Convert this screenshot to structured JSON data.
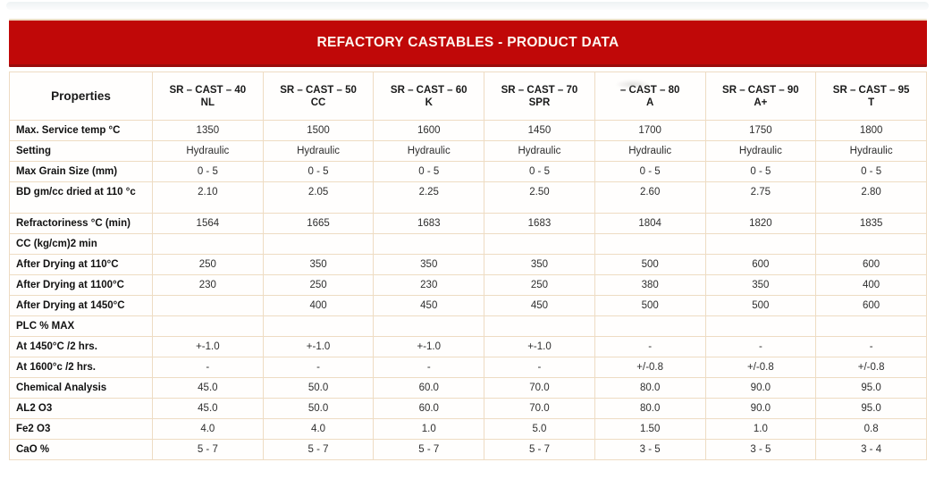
{
  "banner": {
    "title": "REFACTORY CASTABLES - PRODUCT DATA",
    "background_color": "#c00808",
    "text_color": "#fdf6ef"
  },
  "table": {
    "border_color": "#eedcc3",
    "properties_header": "Properties",
    "columns": [
      {
        "name": "SR – CAST – 40",
        "sub": "NL"
      },
      {
        "name": "SR – CAST – 50",
        "sub": "CC"
      },
      {
        "name": "SR – CAST – 60",
        "sub": "K"
      },
      {
        "name": "SR – CAST – 70",
        "sub": "SPR"
      },
      {
        "name": "– CAST – 80",
        "sub": "A",
        "smudge": true
      },
      {
        "name": "SR – CAST – 90",
        "sub": "A+"
      },
      {
        "name": "SR – CAST – 95",
        "sub": "T"
      }
    ],
    "rows": [
      {
        "label": "Max. Service temp °C",
        "values": [
          "1350",
          "1500",
          "1600",
          "1450",
          "1700",
          "1750",
          "1800"
        ]
      },
      {
        "label": "Setting",
        "values": [
          "Hydraulic",
          "Hydraulic",
          "Hydraulic",
          "Hydraulic",
          "Hydraulic",
          "Hydraulic",
          "Hydraulic"
        ]
      },
      {
        "label": "Max Grain Size (mm)",
        "values": [
          "0 - 5",
          "0 - 5",
          "0 - 5",
          "0 - 5",
          "0 - 5",
          "0 - 5",
          "0 - 5"
        ]
      },
      {
        "label": "BD gm/cc dried at 110 °c",
        "tall": true,
        "values": [
          "2.10",
          "2.05",
          "2.25",
          "2.50",
          "2.60",
          "2.75",
          "2.80"
        ]
      },
      {
        "label": "Refractoriness °C (min)",
        "values": [
          "1564",
          "1665",
          "1683",
          "1683",
          "1804",
          "1820",
          "1835"
        ]
      },
      {
        "label": "CC (kg/cm)2 min",
        "section": true,
        "values": [
          "",
          "",
          "",
          "",
          "",
          "",
          ""
        ]
      },
      {
        "label": "After Drying at 110°C",
        "values": [
          "250",
          "350",
          "350",
          "350",
          "500",
          "600",
          "600"
        ]
      },
      {
        "label": "After Drying at 1100°C",
        "values": [
          "230",
          "250",
          "230",
          "250",
          "380",
          "350",
          "400"
        ]
      },
      {
        "label": "After Drying at 1450°C",
        "values": [
          "",
          "400",
          "450",
          "450",
          "500",
          "500",
          "600"
        ]
      },
      {
        "label": "PLC % MAX",
        "section": true,
        "values": [
          "",
          "",
          "",
          "",
          "",
          "",
          ""
        ]
      },
      {
        "label": "At 1450°C /2 hrs.",
        "values": [
          "+-1.0",
          "+-1.0",
          "+-1.0",
          "+-1.0",
          "-",
          "-",
          "-"
        ]
      },
      {
        "label": "At 1600°c /2 hrs.",
        "values": [
          "-",
          "-",
          "-",
          "-",
          "+/-0.8",
          "+/-0.8",
          "+/-0.8"
        ]
      },
      {
        "label": "Chemical Analysis",
        "values": [
          "45.0",
          "50.0",
          "60.0",
          "70.0",
          "80.0",
          "90.0",
          "95.0"
        ]
      },
      {
        "label": "AL2 O3",
        "values": [
          "45.0",
          "50.0",
          "60.0",
          "70.0",
          "80.0",
          "90.0",
          "95.0"
        ]
      },
      {
        "label": "Fe2 O3",
        "values": [
          "4.0",
          "4.0",
          "1.0",
          "5.0",
          "1.50",
          "1.0",
          "0.8"
        ]
      },
      {
        "label": "CaO %",
        "values": [
          "5 - 7",
          "5 - 7",
          "5 - 7",
          "5 - 7",
          "3 - 5",
          "3 - 5",
          "3 - 4"
        ]
      }
    ]
  }
}
